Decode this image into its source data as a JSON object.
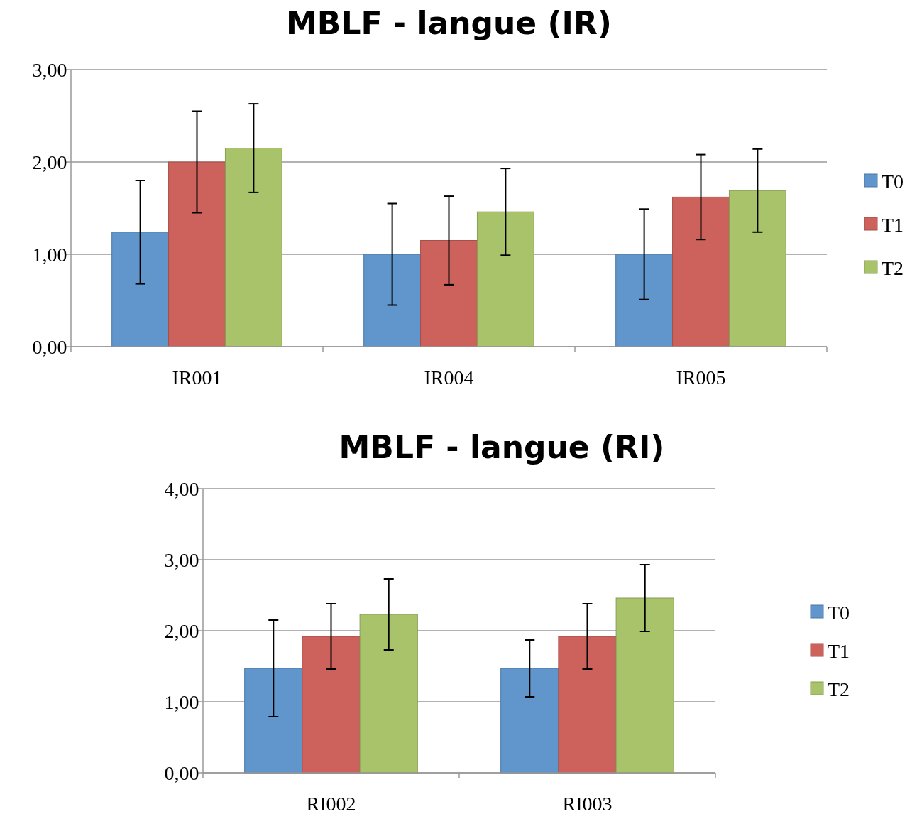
{
  "chart_data": [
    {
      "type": "bar",
      "title": "MBLF - langue (IR)",
      "categories": [
        "IR001",
        "IR004",
        "IR005"
      ],
      "series": [
        {
          "name": "T0",
          "color": "#6096cb",
          "values": [
            1.24,
            1.0,
            1.0
          ],
          "errors": [
            0.56,
            0.55,
            0.49
          ]
        },
        {
          "name": "T1",
          "color": "#cd625d",
          "values": [
            2.0,
            1.15,
            1.62
          ],
          "errors": [
            0.55,
            0.48,
            0.46
          ]
        },
        {
          "name": "T2",
          "color": "#a9c36a",
          "values": [
            2.15,
            1.46,
            1.69
          ],
          "errors": [
            0.48,
            0.47,
            0.45
          ]
        }
      ],
      "ylim": [
        0,
        3
      ],
      "yticks": [
        {
          "value": 0,
          "label": "0,00"
        },
        {
          "value": 1,
          "label": "1,00"
        },
        {
          "value": 2,
          "label": "2,00"
        },
        {
          "value": 3,
          "label": "3,00"
        }
      ],
      "grid": "y",
      "legend": "right"
    },
    {
      "type": "bar",
      "title": "MBLF - langue (RI)",
      "categories": [
        "RI002",
        "RI003"
      ],
      "series": [
        {
          "name": "T0",
          "color": "#6096cb",
          "values": [
            1.47,
            1.47
          ],
          "errors": [
            0.68,
            0.4
          ]
        },
        {
          "name": "T1",
          "color": "#cd625d",
          "values": [
            1.92,
            1.92
          ],
          "errors": [
            0.46,
            0.46
          ]
        },
        {
          "name": "T2",
          "color": "#a9c36a",
          "values": [
            2.23,
            2.46
          ],
          "errors": [
            0.5,
            0.47
          ]
        }
      ],
      "ylim": [
        0,
        4
      ],
      "yticks": [
        {
          "value": 0,
          "label": "0,00"
        },
        {
          "value": 1,
          "label": "1,00"
        },
        {
          "value": 2,
          "label": "2,00"
        },
        {
          "value": 3,
          "label": "3,00"
        },
        {
          "value": 4,
          "label": "4,00"
        }
      ],
      "grid": "y",
      "legend": "right"
    }
  ]
}
